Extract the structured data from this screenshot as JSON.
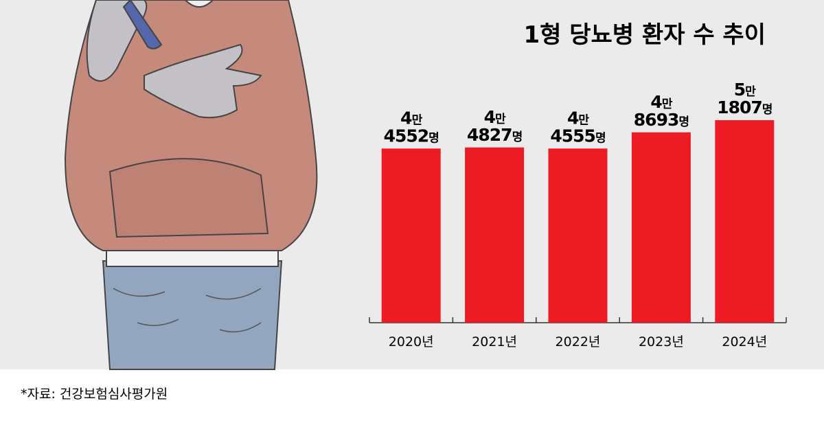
{
  "chart_data": {
    "type": "bar",
    "title": "1형 당뇨병 환자 수 추이",
    "categories": [
      "2020년",
      "2021년",
      "2022년",
      "2023년",
      "2024년"
    ],
    "values": [
      44552,
      44827,
      44555,
      48693,
      51807
    ],
    "value_labels": [
      "4만 4552명",
      "4만 4827명",
      "4만 4555명",
      "4만 8693명",
      "5만 1807명"
    ],
    "color": "#ed1c24",
    "ylim": [
      0,
      80000
    ],
    "source": "*자료: 건강보험심사평가원"
  }
}
